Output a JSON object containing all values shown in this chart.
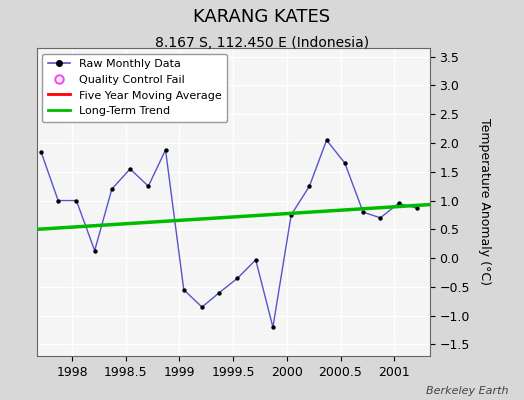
{
  "title": "KARANG KATES",
  "subtitle": "8.167 S, 112.450 E (Indonesia)",
  "ylabel": "Temperature Anomaly (°C)",
  "credit": "Berkeley Earth",
  "ylim": [
    -1.7,
    3.65
  ],
  "yticks": [
    -1.5,
    -1.0,
    -0.5,
    0.0,
    0.5,
    1.0,
    1.5,
    2.0,
    2.5,
    3.0,
    3.5
  ],
  "xlim": [
    1997.67,
    2001.33
  ],
  "xticks": [
    1998,
    1998.5,
    1999,
    1999.5,
    2000,
    2000.5,
    2001
  ],
  "xticklabels": [
    "1998",
    "1998.5",
    "1999",
    "1999.5",
    "2000",
    "2000.5",
    "2001"
  ],
  "raw_x": [
    1997.71,
    1997.87,
    1998.04,
    1998.21,
    1998.37,
    1998.54,
    1998.71,
    1998.87,
    1999.04,
    1999.21,
    1999.37,
    1999.54,
    1999.71,
    1999.87,
    2000.04,
    2000.21,
    2000.37,
    2000.54,
    2000.71,
    2000.87,
    2001.04,
    2001.21
  ],
  "raw_y": [
    1.85,
    1.0,
    1.0,
    0.13,
    1.2,
    1.55,
    1.25,
    1.88,
    -0.55,
    -0.85,
    -0.6,
    -0.35,
    -0.03,
    -1.2,
    0.75,
    1.25,
    2.05,
    1.65,
    0.8,
    0.7,
    0.95,
    0.87
  ],
  "raw_line_color": "#5555cc",
  "raw_marker_color": "#000000",
  "trend_x": [
    1997.67,
    2001.33
  ],
  "trend_y": [
    0.5,
    0.93
  ],
  "trend_color": "#00bb00",
  "moving_avg_color": "#ff0000",
  "fig_bg_color": "#d8d8d8",
  "plot_bg_color": "#f5f5f5",
  "grid_color": "#ffffff",
  "legend_line_color": "#5555cc",
  "legend_qc_color": "#ff44ff",
  "legend_ma_color": "#ff0000",
  "legend_trend_color": "#00bb00",
  "title_fontsize": 13,
  "subtitle_fontsize": 10,
  "tick_fontsize": 9,
  "ylabel_fontsize": 9
}
